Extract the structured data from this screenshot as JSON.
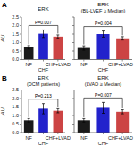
{
  "chart_data": [
    {
      "type": "bar",
      "panel_label": "A",
      "title": "ERK",
      "categories": [
        "NF",
        "CHF",
        "CHF+LVAD"
      ],
      "values": [
        0.72,
        1.52,
        1.35
      ],
      "errors": [
        0.1,
        0.22,
        0.1
      ],
      "colors": [
        "#1a1a1a",
        "#2222cc",
        "#cc4444"
      ],
      "ylim": [
        0,
        2.5
      ],
      "yticks": [
        {
          "value": 0.0,
          "label": "0.0"
        },
        0.5,
        {
          "value": 1.0,
          "label": "1.0"
        },
        1.5,
        {
          "value": 2.0,
          "label": "2.0"
        },
        2.5
      ],
      "ylabel": "AU",
      "annotation": "P=0.007"
    },
    {
      "type": "bar",
      "title": "ERK",
      "subtitle": "(BL-LVEF ≥ Median)",
      "categories": [
        "NF",
        "CHF",
        "CHF+LVAD"
      ],
      "values": [
        0.68,
        1.5,
        1.25
      ],
      "errors": [
        0.13,
        0.18,
        0.1
      ],
      "colors": [
        "#1a1a1a",
        "#2222cc",
        "#cc4444"
      ],
      "ylim": [
        0,
        2.5
      ],
      "yticks": [
        {
          "value": 0.0,
          "label": "0.0"
        },
        0.5,
        {
          "value": 1.0,
          "label": "1.0"
        },
        1.5,
        {
          "value": 2.0,
          "label": "2.0"
        },
        2.5
      ],
      "tick_labels": "x",
      "annotation": "P=0.004"
    },
    {
      "type": "bar",
      "panel_label": "B",
      "title": "ERK",
      "subtitle": "(DCM patients)",
      "categories": [
        "NF",
        "CHF",
        "CHF+LVAD"
      ],
      "values": [
        0.72,
        1.4,
        1.28
      ],
      "errors": [
        0.1,
        0.3,
        0.12
      ],
      "colors": [
        "#1a1a1a",
        "#2222cc",
        "#cc4444"
      ],
      "ylim": [
        0,
        2.5
      ],
      "yticks": [
        {
          "value": 0.0,
          "label": "0.0"
        },
        0.5,
        {
          "value": 1.0,
          "label": "1.0"
        },
        1.5,
        {
          "value": 2.0,
          "label": "2.0"
        },
        2.5
      ],
      "ylabel": "AU",
      "annotation": "P=0.213"
    },
    {
      "type": "bar",
      "title": "ERK",
      "subtitle": "(LVAD ≥ Median)",
      "categories": [
        "NF",
        "CHF",
        "CHF+LVAD"
      ],
      "values": [
        0.72,
        1.45,
        1.22
      ],
      "errors": [
        0.1,
        0.32,
        0.12
      ],
      "colors": [
        "#1a1a1a",
        "#2222cc",
        "#cc4444"
      ],
      "ylim": [
        0,
        2.5
      ],
      "yticks": [
        {
          "value": 0.0,
          "label": "0.0"
        },
        0.5,
        {
          "value": 1.0,
          "label": "1.0"
        },
        1.5,
        {
          "value": 2.0,
          "label": "2.0"
        },
        2.5
      ],
      "tick_labels": "x",
      "annotation": "P=0.007"
    }
  ]
}
